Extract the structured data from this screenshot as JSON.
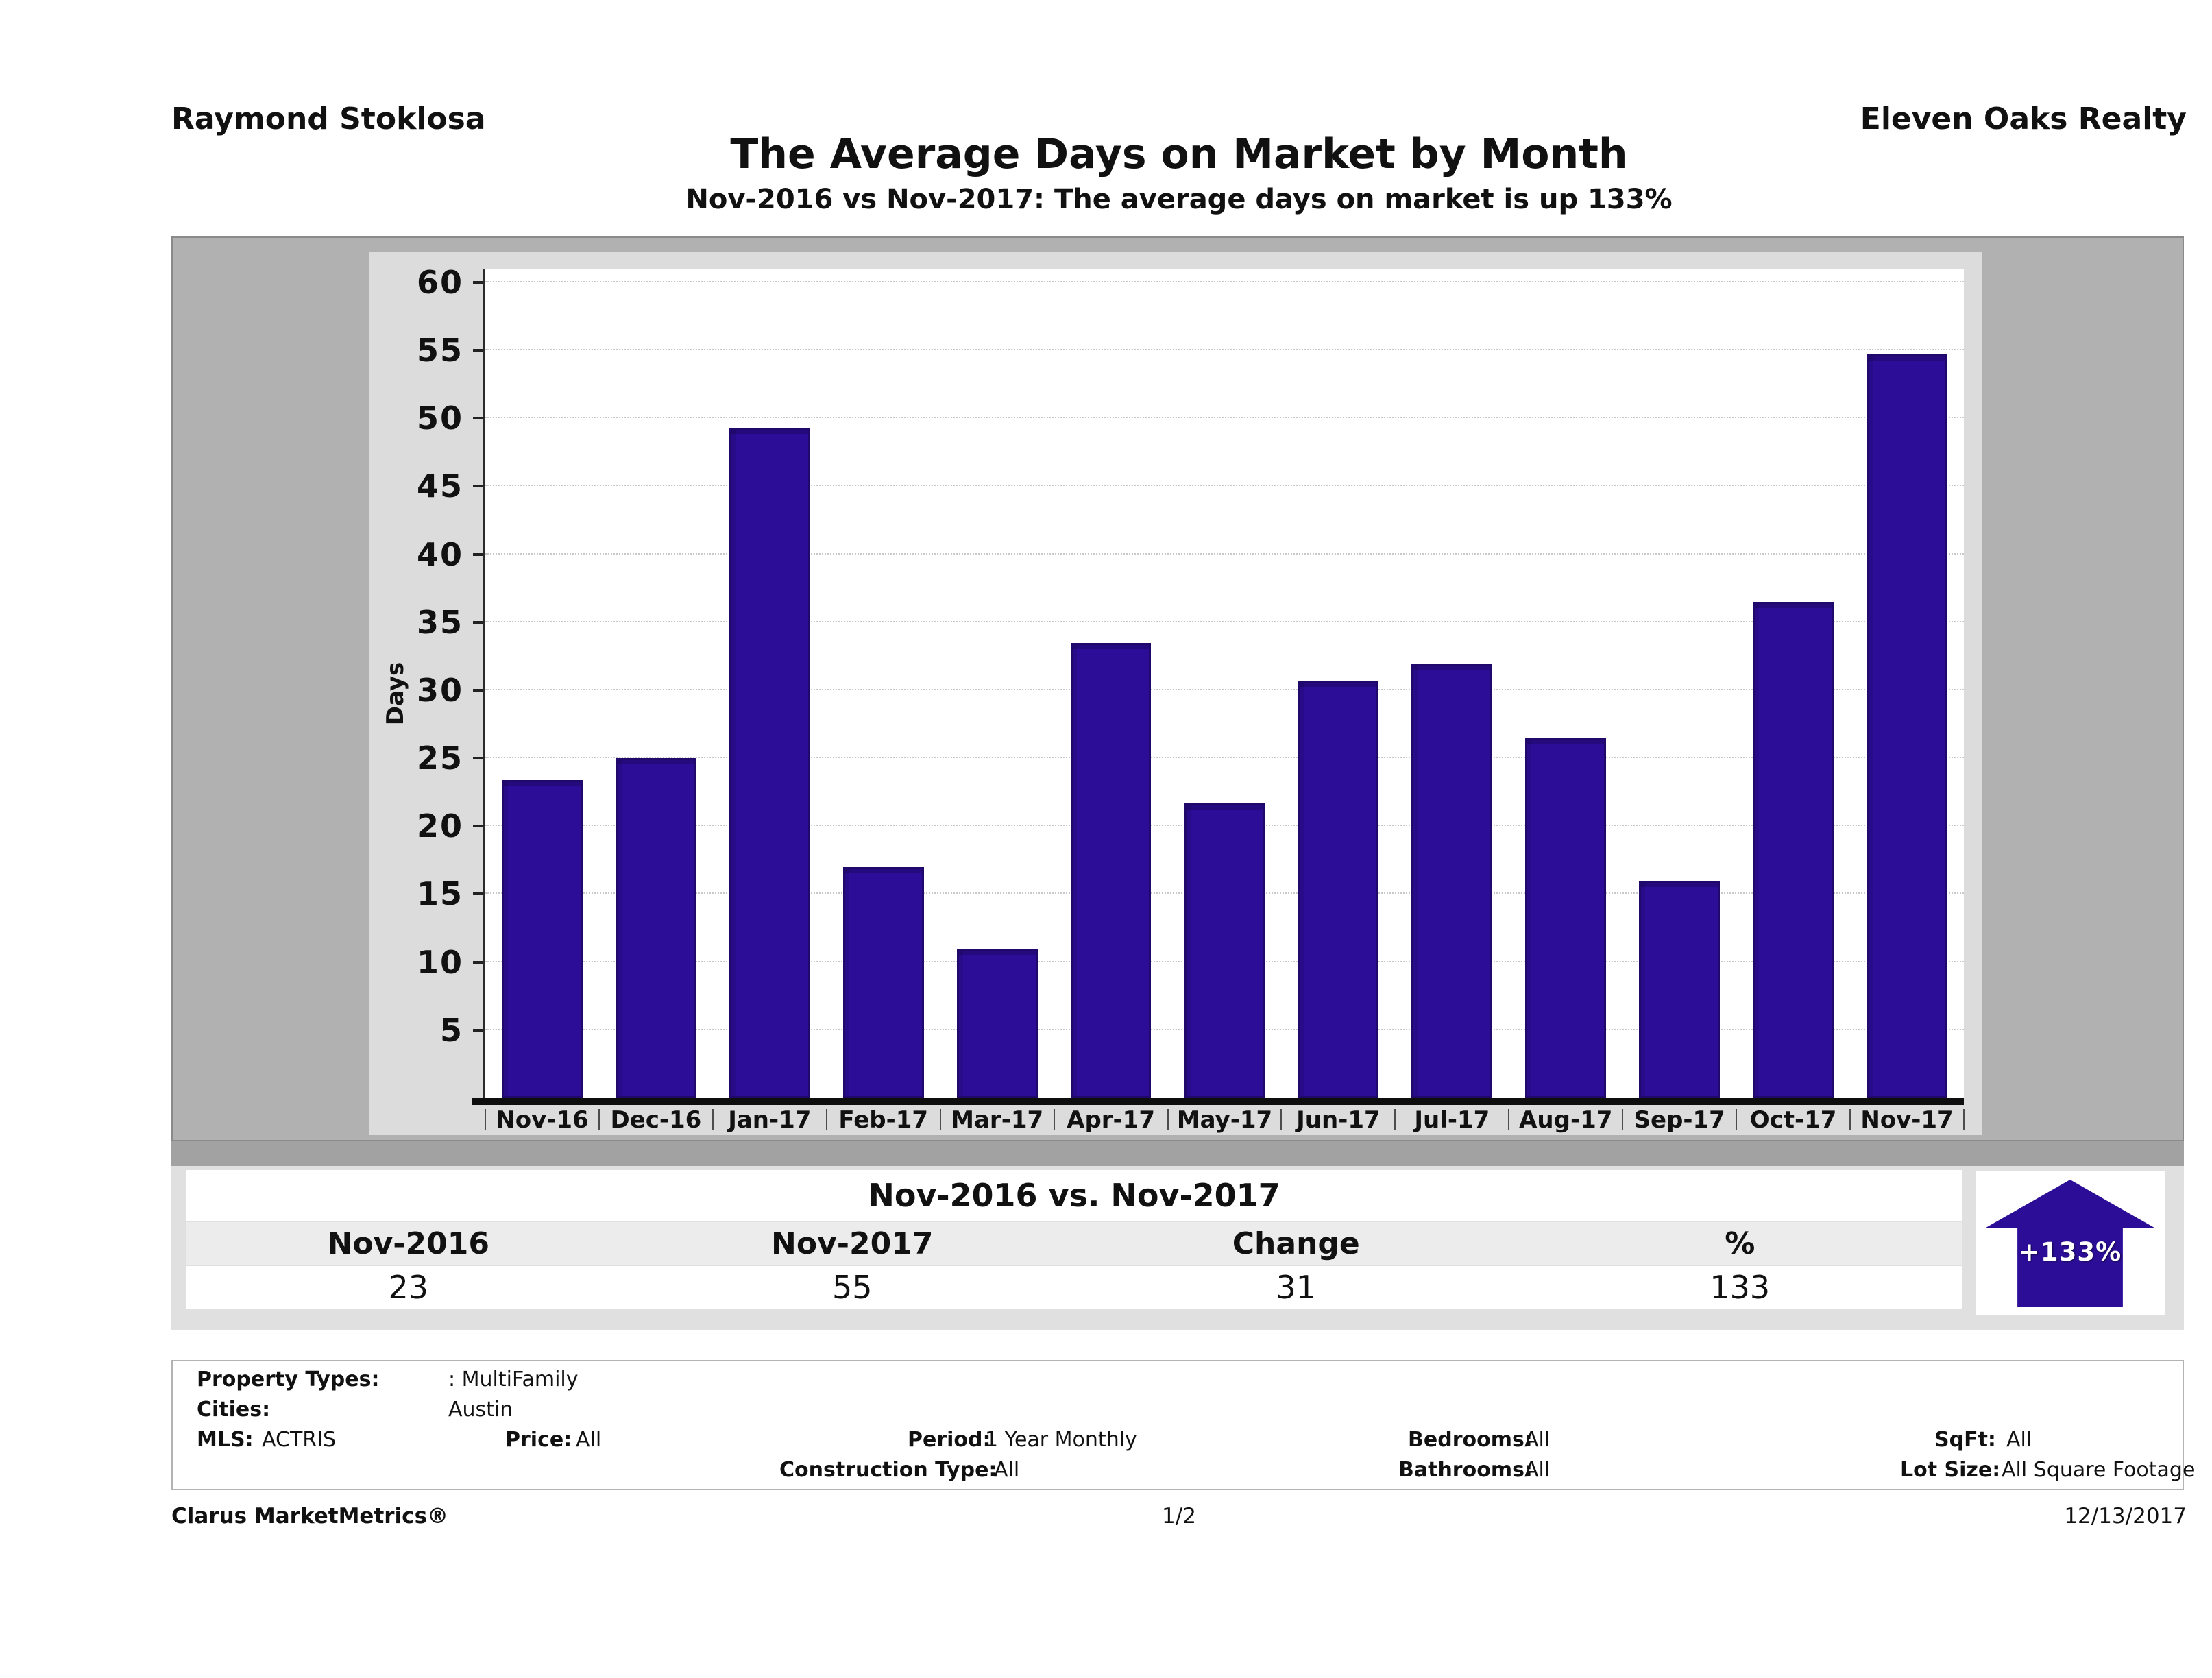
{
  "header": {
    "agent": "Raymond Stoklosa",
    "company": "Eleven Oaks Realty"
  },
  "title": "The Average Days on Market by Month",
  "subtitle": "Nov-2016 vs Nov-2017: The average days on market is up 133%",
  "chart_data": {
    "type": "bar",
    "title": "The Average Days on Market by Month",
    "categories": [
      "Nov-16",
      "Dec-16",
      "Jan-17",
      "Feb-17",
      "Mar-17",
      "Apr-17",
      "May-17",
      "Jun-17",
      "Jul-17",
      "Aug-17",
      "Sep-17",
      "Oct-17",
      "Nov-17"
    ],
    "values": [
      23.4,
      25,
      49.3,
      17,
      11,
      33.5,
      21.7,
      30.7,
      31.9,
      26.5,
      16,
      36.5,
      54.7
    ],
    "xlabel": "",
    "ylabel": "Days",
    "ylim": [
      0,
      61
    ],
    "yticks": [
      5,
      10,
      15,
      20,
      25,
      30,
      35,
      40,
      45,
      50,
      55,
      60
    ],
    "grid": true,
    "legend_position": "none",
    "bar_color": "#2c0d98"
  },
  "comparison": {
    "title": "Nov-2016 vs. Nov-2017",
    "columns": [
      "Nov-2016",
      "Nov-2017",
      "Change",
      "%"
    ],
    "values": [
      "23",
      "55",
      "31",
      "133"
    ],
    "badge": "+133%",
    "badge_color": "#2c0d98"
  },
  "criteria": {
    "property_types_label": "Property Types:",
    "property_types_value": ": MultiFamily",
    "cities_label": "Cities:",
    "cities_value": "Austin",
    "mls_label": "MLS:",
    "mls_value": "ACTRIS",
    "price_label": "Price:",
    "price_value": "All",
    "period_label": "Period:",
    "period_value": "1 Year Monthly",
    "construction_label": "Construction Type:",
    "construction_value": "All",
    "bedrooms_label": "Bedrooms:",
    "bedrooms_value": "All",
    "bathrooms_label": "Bathrooms:",
    "bathrooms_value": "All",
    "sqft_label": "SqFt:",
    "sqft_value": "All",
    "lotsize_label": "Lot Size:",
    "lotsize_value": "All Square Footage"
  },
  "footer": {
    "brand": "Clarus MarketMetrics®",
    "page": "1/2",
    "date": "12/13/2017"
  }
}
